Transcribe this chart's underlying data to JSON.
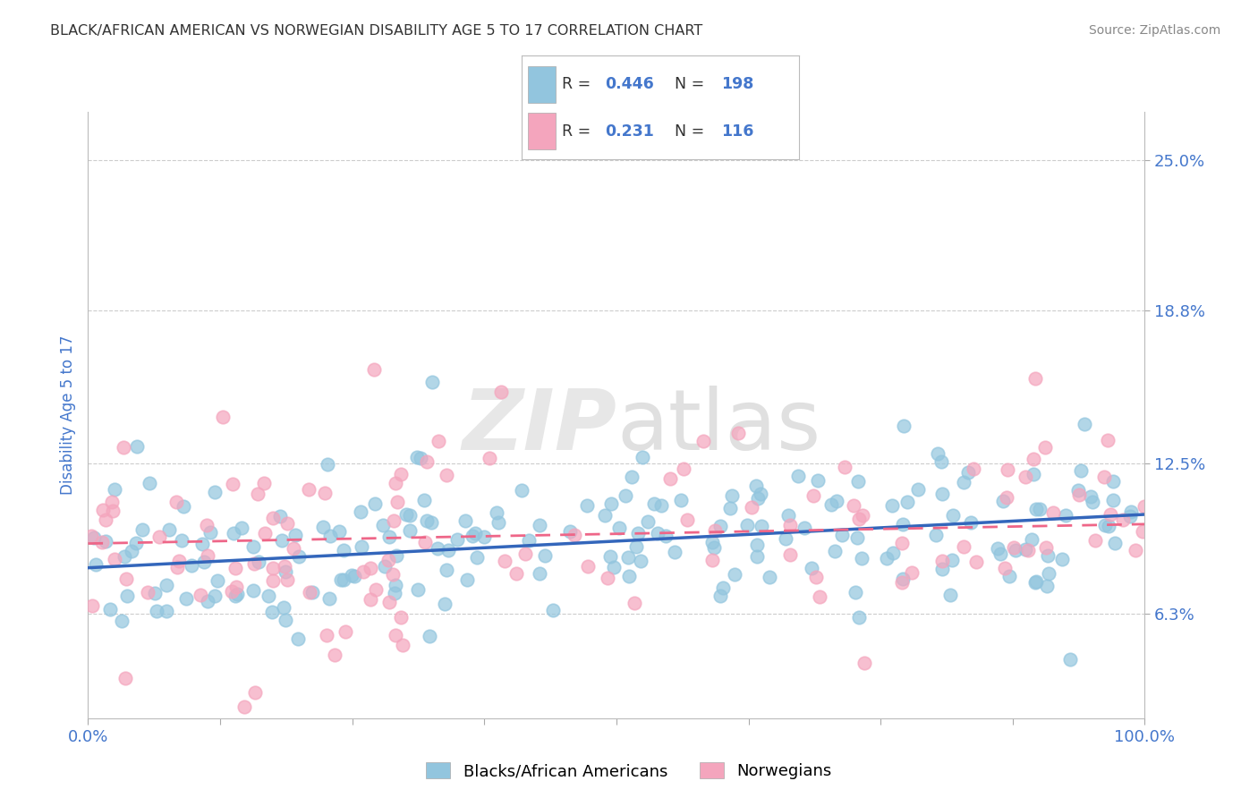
{
  "title": "BLACK/AFRICAN AMERICAN VS NORWEGIAN DISABILITY AGE 5 TO 17 CORRELATION CHART",
  "source": "Source: ZipAtlas.com",
  "ylabel": "Disability Age 5 to 17",
  "r_blue": 0.446,
  "n_blue": 198,
  "r_pink": 0.231,
  "n_pink": 116,
  "x_min": 0.0,
  "x_max": 100.0,
  "y_min": 2.0,
  "y_max": 27.0,
  "y_ticks": [
    6.3,
    12.5,
    18.8,
    25.0
  ],
  "watermark": "ZIPatlas",
  "blue_color": "#92C5DE",
  "pink_color": "#F4A5BD",
  "blue_line_color": "#3366BB",
  "pink_line_color": "#EE6688",
  "title_color": "#333333",
  "axis_label_color": "#4477CC",
  "tick_label_color": "#4477CC",
  "legend_r_color": "#4477CC",
  "legend_n_color": "#4477CC",
  "background_color": "#FFFFFF",
  "grid_color": "#CCCCCC",
  "seed": 42,
  "blue_intercept": 8.2,
  "blue_slope": 0.022,
  "pink_intercept": 9.2,
  "pink_slope": 0.008
}
